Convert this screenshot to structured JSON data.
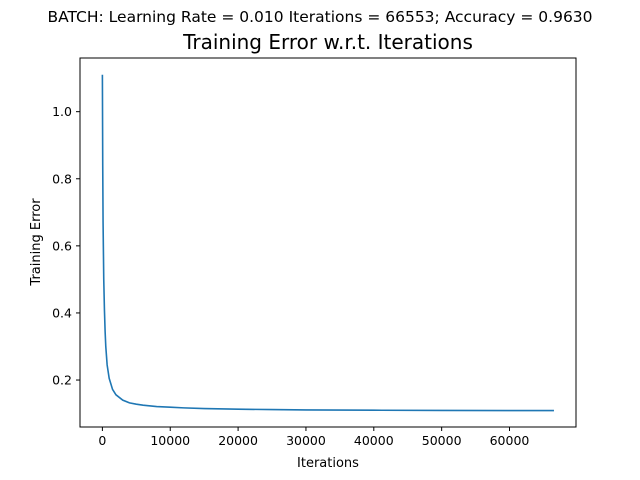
{
  "figure": {
    "suptitle": "BATCH: Learning Rate = 0.010 Iterations = 66553; Accuracy = 0.9630"
  },
  "chart_data": {
    "type": "line",
    "title": "Training Error w.r.t. Iterations",
    "xlabel": "Iterations",
    "ylabel": "Training Error",
    "xlim": [
      -3300,
      69800
    ],
    "ylim": [
      0.06,
      1.16
    ],
    "xticks": [
      0,
      10000,
      20000,
      30000,
      40000,
      50000,
      60000
    ],
    "xtick_labels": [
      "0",
      "10000",
      "20000",
      "30000",
      "40000",
      "50000",
      "60000"
    ],
    "yticks": [
      0.2,
      0.4,
      0.6,
      0.8,
      1.0
    ],
    "ytick_labels": [
      "0.2",
      "0.4",
      "0.6",
      "0.8",
      "1.0"
    ],
    "grid": false,
    "series_color": "#1f77b4",
    "series": [
      {
        "x": [
          0,
          50,
          100,
          200,
          300,
          400,
          500,
          700,
          1000,
          1500,
          2000,
          3000,
          4000,
          5000,
          6000,
          8000,
          10000,
          12000,
          15000,
          20000,
          25000,
          30000,
          40000,
          50000,
          60000,
          66553
        ],
        "y": [
          1.11,
          0.84,
          0.67,
          0.5,
          0.41,
          0.345,
          0.3,
          0.245,
          0.205,
          0.172,
          0.156,
          0.14,
          0.132,
          0.128,
          0.125,
          0.121,
          0.119,
          0.117,
          0.115,
          0.113,
          0.112,
          0.111,
          0.11,
          0.1095,
          0.109,
          0.109
        ]
      }
    ]
  }
}
